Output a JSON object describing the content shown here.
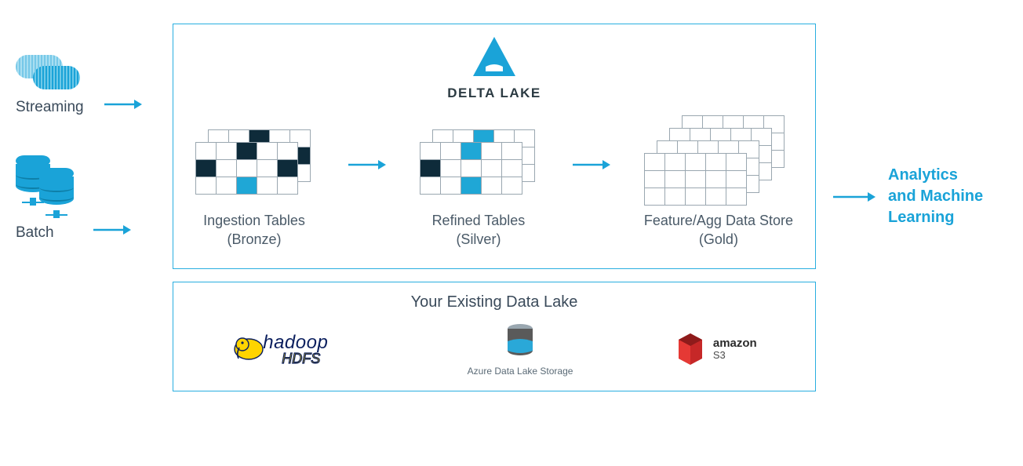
{
  "colors": {
    "accent": "#1aa3d8",
    "border": "#29aee0",
    "text": "#3a4a5a",
    "text_muted": "#4a5a68",
    "cell_border": "#9aa7b0",
    "cell_dark": "#0e2b3a",
    "cell_blue": "#1fa7d6",
    "background": "#ffffff",
    "hadoop_blue": "#0b1f5e",
    "hadoop_yellow": "#ffd400",
    "amazon_red": "#c62828",
    "azure_gray": "#5a5a5a",
    "azure_blue": "#2aa8d8"
  },
  "sources": {
    "streaming": {
      "label": "Streaming"
    },
    "batch": {
      "label": "Batch"
    }
  },
  "delta": {
    "brand": "DELTA LAKE",
    "logo_color": "#1aa3d8"
  },
  "stages": {
    "bronze": {
      "label_line1": "Ingestion Tables",
      "label_line2": "(Bronze)",
      "table": {
        "rows": 3,
        "cols": 5,
        "cells": [
          [
            "",
            "",
            "d",
            "",
            ""
          ],
          [
            "d",
            "",
            "",
            "",
            "d"
          ],
          [
            "",
            "",
            "b",
            "",
            ""
          ]
        ]
      },
      "copies": 2
    },
    "silver": {
      "label_line1": "Refined Tables",
      "label_line2": "(Silver)",
      "table": {
        "rows": 3,
        "cols": 5,
        "cells": [
          [
            "",
            "",
            "b",
            "",
            ""
          ],
          [
            "d",
            "",
            "",
            "",
            ""
          ],
          [
            "",
            "",
            "b",
            "",
            ""
          ]
        ]
      },
      "copies": 2
    },
    "gold": {
      "label_line1": "Feature/Agg Data Store",
      "label_line2": "(Gold)",
      "table": {
        "rows": 3,
        "cols": 5,
        "cells": [
          [
            "",
            "",
            "",
            "",
            ""
          ],
          [
            "",
            "",
            "",
            "",
            ""
          ],
          [
            "",
            "",
            "",
            "",
            ""
          ]
        ]
      },
      "copies": 4
    }
  },
  "datalake": {
    "title": "Your Existing Data Lake",
    "providers": {
      "hadoop": {
        "name": "hadoop",
        "sub": "HDFS"
      },
      "azure": {
        "name": "Azure Data Lake Storage"
      },
      "amazon": {
        "name_line1": "amazon",
        "name_line2": "S3"
      }
    }
  },
  "output": {
    "label_line1": "Analytics",
    "label_line2": "and Machine",
    "label_line3": "Learning"
  },
  "arrow": {
    "color": "#1aa3d8",
    "length": 46,
    "stroke_width": 2.5
  }
}
